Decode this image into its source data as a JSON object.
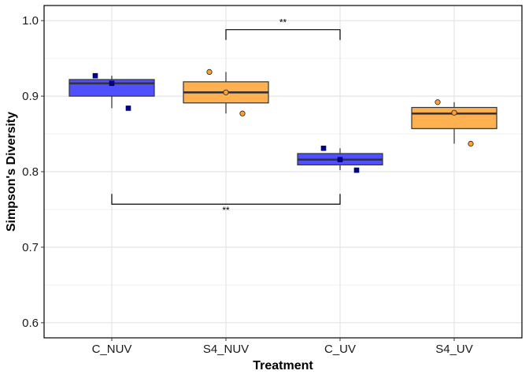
{
  "chart_data": {
    "type": "box",
    "xlabel": "Treatment",
    "ylabel": "Simpson's Diversity",
    "ylim": [
      0.58,
      1.02
    ],
    "yticks": [
      0.6,
      0.7,
      0.8,
      0.9,
      1.0
    ],
    "ytick_labels": [
      "0.6",
      "0.7",
      "0.8",
      "0.9",
      "1.0"
    ],
    "grid": true,
    "categories": [
      "C_NUV",
      "S4_NUV",
      "C_UV",
      "S4_UV"
    ],
    "boxes": [
      {
        "category": "C_NUV",
        "fill": "#5050ff",
        "point_color": "#00008b",
        "point_shape": "square",
        "whisker_low": 0.884,
        "q1": 0.9,
        "median": 0.917,
        "q3": 0.922,
        "whisker_high": 0.927,
        "mean": 0.917,
        "points": [
          0.927,
          0.884
        ]
      },
      {
        "category": "S4_NUV",
        "fill": "#ffb050",
        "point_color": "#ffa033",
        "point_shape": "circle",
        "whisker_low": 0.877,
        "q1": 0.891,
        "median": 0.905,
        "q3": 0.919,
        "whisker_high": 0.932,
        "mean": 0.905,
        "points": [
          0.932,
          0.877
        ]
      },
      {
        "category": "C_UV",
        "fill": "#5050ff",
        "point_color": "#00008b",
        "point_shape": "square",
        "whisker_low": 0.802,
        "q1": 0.809,
        "median": 0.816,
        "q3": 0.824,
        "whisker_high": 0.831,
        "mean": 0.816,
        "points": [
          0.831,
          0.802
        ]
      },
      {
        "category": "S4_UV",
        "fill": "#ffb050",
        "point_color": "#ffa033",
        "point_shape": "circle",
        "whisker_low": 0.837,
        "q1": 0.857,
        "median": 0.877,
        "q3": 0.885,
        "whisker_high": 0.892,
        "mean": 0.878,
        "points": [
          0.892,
          0.837
        ]
      }
    ],
    "annotations": [
      {
        "from": "S4_NUV",
        "to": "C_UV",
        "y": 0.988,
        "direction": "down",
        "label": "**"
      },
      {
        "from": "C_NUV",
        "to": "C_UV",
        "y": 0.757,
        "direction": "up",
        "label": "**"
      }
    ]
  }
}
